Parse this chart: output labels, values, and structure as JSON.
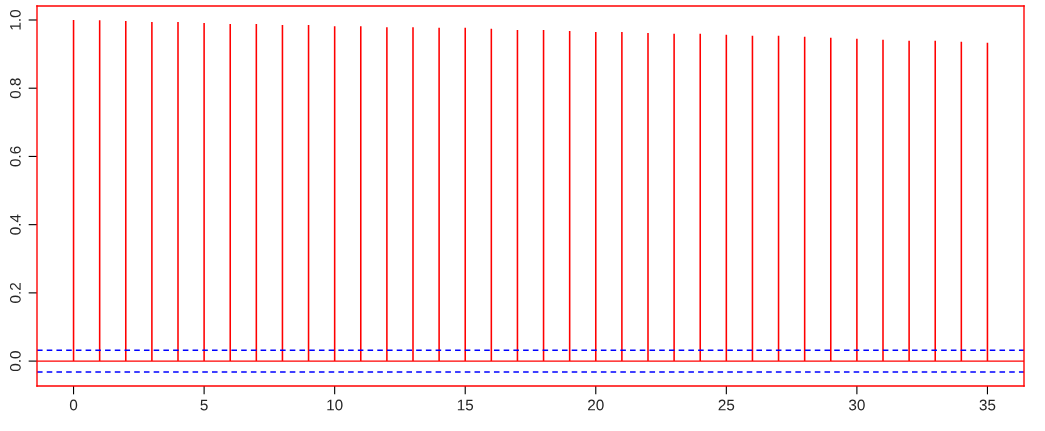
{
  "chart_data": {
    "type": "bar",
    "x": [
      0,
      1,
      2,
      3,
      4,
      5,
      6,
      7,
      8,
      9,
      10,
      11,
      12,
      13,
      14,
      15,
      16,
      17,
      18,
      19,
      20,
      21,
      22,
      23,
      24,
      25,
      26,
      27,
      28,
      29,
      30,
      31,
      32,
      33,
      34,
      35
    ],
    "values": [
      1.0,
      0.999,
      0.997,
      0.994,
      0.994,
      0.991,
      0.988,
      0.988,
      0.985,
      0.985,
      0.982,
      0.982,
      0.979,
      0.979,
      0.977,
      0.977,
      0.974,
      0.971,
      0.971,
      0.968,
      0.965,
      0.965,
      0.962,
      0.96,
      0.96,
      0.957,
      0.954,
      0.954,
      0.951,
      0.948,
      0.945,
      0.942,
      0.939,
      0.939,
      0.936,
      0.933
    ],
    "color": "#ff0000",
    "xlim": [
      -1.4,
      36.4
    ],
    "ylim": [
      -0.073,
      1.041
    ],
    "xticks": [
      0,
      5,
      10,
      15,
      20,
      25,
      30,
      35
    ],
    "yticks": [
      {
        "value": 0,
        "label": "0.0"
      },
      {
        "value": 0.2,
        "label": "0.2"
      },
      {
        "value": 0.4,
        "label": "0.4"
      },
      {
        "value": 0.6,
        "label": "0.6"
      },
      {
        "value": 0.8,
        "label": "0.8"
      },
      {
        "value": 1.0,
        "label": "1.0"
      }
    ],
    "ref_lines": [
      {
        "axis": "y",
        "value": 0,
        "color": "#ff0000",
        "line_style": "solid"
      },
      {
        "axis": "y",
        "value": 0.032,
        "color": "#0000ff",
        "line_style": "dashed"
      },
      {
        "axis": "y",
        "value": -0.032,
        "color": "#0000ff",
        "line_style": "dashed"
      }
    ],
    "grid": false,
    "legend": false
  }
}
